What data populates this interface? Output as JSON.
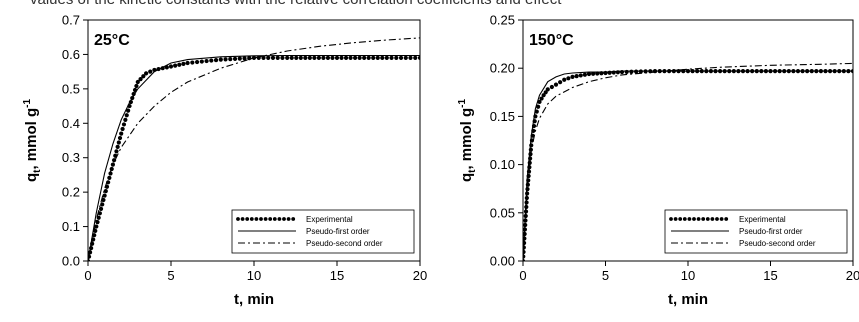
{
  "caption": "values of the kinetic constants with the relative correlation coefficients and effect",
  "chart_data": [
    {
      "type": "line",
      "annotation": "25°C",
      "xlabel": "t, min",
      "ylabel": "q",
      "ylabel_sub": "t",
      "ylabel_unit": ", mmol g",
      "ylabel_sup": "-1",
      "xlim": [
        0,
        20
      ],
      "ylim": [
        0,
        0.7
      ],
      "xticks": [
        0,
        5,
        10,
        15,
        20
      ],
      "xtick_labels": [
        "0",
        "5",
        "10",
        "15",
        "20"
      ],
      "yticks": [
        0,
        0.1,
        0.2,
        0.3,
        0.4,
        0.5,
        0.6,
        0.7
      ],
      "ytick_labels": [
        "0.0",
        "0.1",
        "0.2",
        "0.3",
        "0.4",
        "0.5",
        "0.6",
        "0.7"
      ],
      "legend_position": "bottom-right",
      "series": [
        {
          "name": "Experimental",
          "style": "dotted",
          "x": [
            0,
            0.5,
            1,
            1.5,
            2,
            2.5,
            3,
            3.5,
            4,
            5,
            6,
            8,
            10,
            12,
            15,
            18,
            20
          ],
          "y": [
            0,
            0.1,
            0.19,
            0.28,
            0.37,
            0.45,
            0.52,
            0.545,
            0.555,
            0.565,
            0.575,
            0.585,
            0.59,
            0.59,
            0.59,
            0.59,
            0.59
          ]
        },
        {
          "name": "Pseudo-first order",
          "style": "solid",
          "x": [
            0,
            0.5,
            1,
            1.5,
            2,
            2.5,
            3,
            4,
            5,
            6,
            8,
            10,
            12,
            15,
            18,
            20
          ],
          "y": [
            0,
            0.14,
            0.255,
            0.34,
            0.41,
            0.46,
            0.5,
            0.55,
            0.575,
            0.585,
            0.593,
            0.596,
            0.597,
            0.597,
            0.597,
            0.597
          ]
        },
        {
          "name": "Pseudo-second order",
          "style": "dash-dot",
          "x": [
            0,
            0.5,
            1,
            1.5,
            2,
            3,
            4,
            5,
            6,
            8,
            10,
            12,
            14,
            16,
            18,
            20
          ],
          "y": [
            0,
            0.12,
            0.21,
            0.28,
            0.33,
            0.4,
            0.45,
            0.49,
            0.52,
            0.56,
            0.59,
            0.61,
            0.624,
            0.634,
            0.642,
            0.648
          ]
        }
      ]
    },
    {
      "type": "line",
      "annotation": "150°C",
      "xlabel": "t, min",
      "ylabel": "q",
      "ylabel_sub": "t",
      "ylabel_unit": ", mmol g",
      "ylabel_sup": "-1",
      "xlim": [
        0,
        20
      ],
      "ylim": [
        0,
        0.25
      ],
      "xticks": [
        0,
        5,
        10,
        15,
        20
      ],
      "xtick_labels": [
        "0",
        "5",
        "10",
        "15",
        "20"
      ],
      "yticks": [
        0,
        0.05,
        0.1,
        0.15,
        0.2,
        0.25
      ],
      "ytick_labels": [
        "0.00",
        "0.05",
        "0.10",
        "0.15",
        "0.20",
        "0.25"
      ],
      "legend_position": "bottom-right",
      "series": [
        {
          "name": "Experimental",
          "style": "dotted",
          "x": [
            0,
            0.25,
            0.5,
            0.75,
            1,
            1.25,
            1.5,
            2,
            2.5,
            3,
            4,
            5,
            6,
            8,
            10,
            15,
            20
          ],
          "y": [
            0,
            0.07,
            0.12,
            0.15,
            0.165,
            0.172,
            0.178,
            0.183,
            0.188,
            0.191,
            0.194,
            0.195,
            0.196,
            0.197,
            0.197,
            0.197,
            0.197
          ]
        },
        {
          "name": "Pseudo-first order",
          "style": "solid",
          "x": [
            0,
            0.25,
            0.5,
            0.75,
            1,
            1.5,
            2,
            2.5,
            3,
            4,
            5,
            6,
            8,
            10,
            15,
            20
          ],
          "y": [
            0,
            0.085,
            0.13,
            0.158,
            0.172,
            0.186,
            0.191,
            0.194,
            0.195,
            0.196,
            0.196,
            0.197,
            0.197,
            0.197,
            0.197,
            0.197
          ]
        },
        {
          "name": "Pseudo-second order",
          "style": "dash-dot",
          "x": [
            0,
            0.25,
            0.5,
            0.75,
            1,
            1.5,
            2,
            3,
            4,
            5,
            6,
            8,
            10,
            12,
            15,
            18,
            20
          ],
          "y": [
            0,
            0.075,
            0.115,
            0.135,
            0.148,
            0.163,
            0.171,
            0.18,
            0.186,
            0.19,
            0.193,
            0.196,
            0.199,
            0.201,
            0.203,
            0.204,
            0.205
          ]
        }
      ]
    }
  ]
}
